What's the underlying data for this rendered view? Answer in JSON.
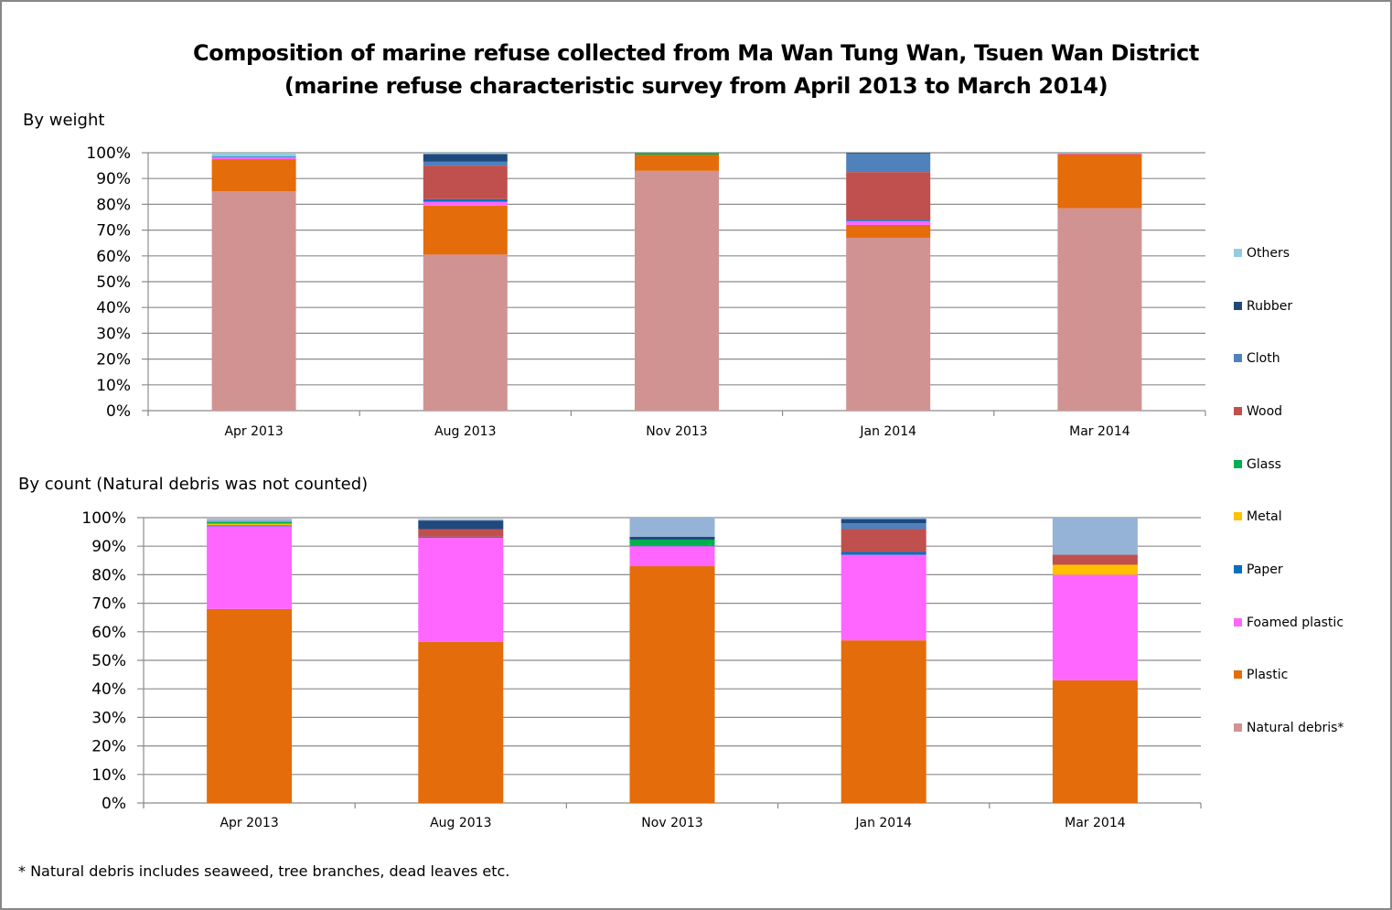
{
  "title_line1": "Composition of marine refuse collected from Ma Wan Tung Wan, Tsuen Wan District",
  "title_line2": "(marine refuse characteristic survey from April 2013 to March 2014)",
  "footnote": "* Natural debris includes seaweed, tree branches, dead leaves etc.",
  "legend": [
    {
      "name": "Others",
      "color": "#93CDDD"
    },
    {
      "name": "Rubber",
      "color": "#1F497D"
    },
    {
      "name": "Cloth",
      "color": "#4F81BD"
    },
    {
      "name": "Wood",
      "color": "#C0504D"
    },
    {
      "name": "Glass",
      "color": "#00B050"
    },
    {
      "name": "Metal",
      "color": "#FFC000"
    },
    {
      "name": "Paper",
      "color": "#0070C0"
    },
    {
      "name": "Foamed plastic",
      "color": "#FF66FF"
    },
    {
      "name": "Plastic",
      "color": "#E46C0A"
    },
    {
      "name": "Natural debris*",
      "color": "#D09392"
    }
  ],
  "chart_data": [
    {
      "type": "bar",
      "stacked": true,
      "title": "By weight",
      "xlabel": "",
      "ylabel": "",
      "ylim": [
        0,
        100
      ],
      "yticks": [
        "0%",
        "10%",
        "20%",
        "30%",
        "40%",
        "50%",
        "60%",
        "70%",
        "80%",
        "90%",
        "100%"
      ],
      "grid": true,
      "legend_position": "right",
      "categories": [
        "Apr 2013",
        "Aug 2013",
        "Nov 2013",
        "Jan 2014",
        "Mar 2014"
      ],
      "series": [
        {
          "name": "Natural debris*",
          "color": "#D09392",
          "values": [
            85.0,
            60.5,
            93.0,
            67.0,
            78.5
          ]
        },
        {
          "name": "Plastic",
          "color": "#E46C0A",
          "values": [
            12.5,
            19.0,
            6.3,
            5.0,
            20.8
          ]
        },
        {
          "name": "Foamed plastic",
          "color": "#FF66FF",
          "values": [
            0.7,
            1.5,
            0.0,
            1.5,
            0.3
          ]
        },
        {
          "name": "Paper",
          "color": "#0070C0",
          "values": [
            0.3,
            1.0,
            0.0,
            0.5,
            0.0
          ]
        },
        {
          "name": "Metal",
          "color": "#FFC000",
          "values": [
            0.0,
            0.0,
            0.0,
            0.0,
            0.0
          ]
        },
        {
          "name": "Glass",
          "color": "#00B050",
          "values": [
            0.0,
            0.0,
            0.7,
            0.0,
            0.0
          ]
        },
        {
          "name": "Wood",
          "color": "#C0504D",
          "values": [
            0.0,
            13.0,
            0.0,
            18.5,
            0.2
          ]
        },
        {
          "name": "Cloth",
          "color": "#4F81BD",
          "values": [
            0.0,
            1.5,
            0.0,
            7.2,
            0.0
          ]
        },
        {
          "name": "Rubber",
          "color": "#1F497D",
          "values": [
            0.0,
            3.0,
            0.0,
            0.3,
            0.0
          ]
        },
        {
          "name": "Others",
          "color": "#93CDDD",
          "values": [
            1.5,
            0.5,
            0.0,
            0.0,
            0.2
          ]
        }
      ]
    },
    {
      "type": "bar",
      "stacked": true,
      "title": "By count (Natural debris was not counted)",
      "xlabel": "",
      "ylabel": "",
      "ylim": [
        0,
        100
      ],
      "yticks": [
        "0%",
        "10%",
        "20%",
        "30%",
        "40%",
        "50%",
        "60%",
        "70%",
        "80%",
        "90%",
        "100%"
      ],
      "grid": true,
      "legend_position": "right",
      "categories": [
        "Apr 2013",
        "Aug 2013",
        "Nov 2013",
        "Jan 2014",
        "Mar 2014"
      ],
      "series": [
        {
          "name": "Natural debris*",
          "color": "#D09392",
          "values": [
            0,
            0,
            0,
            0,
            0
          ]
        },
        {
          "name": "Plastic",
          "color": "#E46C0A",
          "values": [
            68.0,
            56.5,
            83.0,
            57.0,
            43.0
          ]
        },
        {
          "name": "Foamed plastic",
          "color": "#FF66FF",
          "values": [
            29.0,
            36.5,
            7.0,
            30.0,
            37.0
          ]
        },
        {
          "name": "Paper",
          "color": "#0070C0",
          "values": [
            0.3,
            0.3,
            0.3,
            1.0,
            0.0
          ]
        },
        {
          "name": "Metal",
          "color": "#FFC000",
          "values": [
            0.6,
            0.0,
            0.0,
            0.0,
            3.5
          ]
        },
        {
          "name": "Glass",
          "color": "#00B050",
          "values": [
            0.7,
            0.0,
            2.0,
            0.0,
            0.0
          ]
        },
        {
          "name": "Wood",
          "color": "#C0504D",
          "values": [
            0.0,
            2.7,
            0.0,
            8.0,
            3.5
          ]
        },
        {
          "name": "Cloth",
          "color": "#4F81BD",
          "values": [
            0.0,
            0.0,
            0.0,
            2.0,
            0.0
          ]
        },
        {
          "name": "Rubber",
          "color": "#1F497D",
          "values": [
            0.0,
            3.0,
            1.0,
            1.5,
            0.0
          ]
        },
        {
          "name": "Others",
          "color": "#95B3D7",
          "values": [
            1.0,
            0.5,
            6.7,
            0.5,
            13.0
          ]
        }
      ]
    }
  ]
}
